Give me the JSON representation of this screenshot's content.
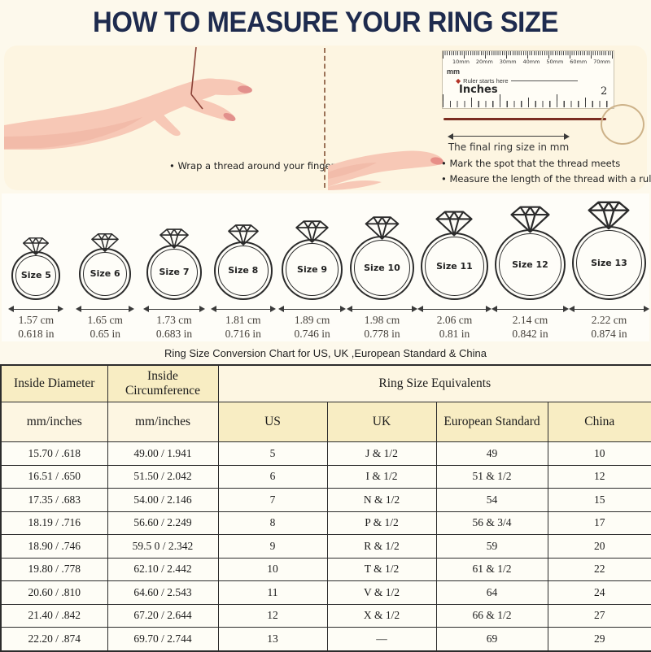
{
  "title": "HOW TO MEASURE YOUR RING SIZE",
  "steps": {
    "wrap": "Wrap a thread around your finger",
    "mark": "Mark the spot that the thread meets",
    "measure": "Measure the length of the thread with a ruler"
  },
  "ruler": {
    "mm_ticks": [
      "10mm",
      "20mm",
      "30mm",
      "40mm",
      "50mm",
      "60mm",
      "70mm"
    ],
    "unit_mm": "mm",
    "starts_here": "Ruler starts here",
    "unit_inches": "Inches",
    "inch_mark": "2",
    "final_size_caption": "The final ring size in mm"
  },
  "rings": [
    {
      "label": "Size 5",
      "cm": "1.57 cm",
      "inch": "0.618 in"
    },
    {
      "label": "Size 6",
      "cm": "1.65 cm",
      "inch": "0.65 in"
    },
    {
      "label": "Size 7",
      "cm": "1.73 cm",
      "inch": "0.683 in"
    },
    {
      "label": "Size 8",
      "cm": "1.81 cm",
      "inch": "0.716 in"
    },
    {
      "label": "Size 9",
      "cm": "1.89 cm",
      "inch": "0.746 in"
    },
    {
      "label": "Size 10",
      "cm": "1.98 cm",
      "inch": "0.778 in"
    },
    {
      "label": "Size 11",
      "cm": "2.06 cm",
      "inch": "0.81 in"
    },
    {
      "label": "Size 12",
      "cm": "2.14 cm",
      "inch": "0.842 in"
    },
    {
      "label": "Size 13",
      "cm": "2.22 cm",
      "inch": "0.874 in"
    }
  ],
  "conversion_chart": {
    "title": "Ring Size Conversion Chart for US, UK ,European Standard & China",
    "header_group": [
      "Inside Diameter",
      "Inside Circumference",
      "Ring Size Equivalents"
    ],
    "columns": [
      "mm/inches",
      "mm/inches",
      "US",
      "UK",
      "European Standard",
      "China"
    ],
    "rows": [
      [
        "15.70 / .618",
        "49.00 / 1.941",
        "5",
        "J & 1/2",
        "49",
        "10"
      ],
      [
        "16.51 / .650",
        "51.50 / 2.042",
        "6",
        "I & 1/2",
        "51 & 1/2",
        "12"
      ],
      [
        "17.35 / .683",
        "54.00 / 2.146",
        "7",
        "N & 1/2",
        "54",
        "15"
      ],
      [
        "18.19 / .716",
        "56.60 / 2.249",
        "8",
        "P & 1/2",
        "56 & 3/4",
        "17"
      ],
      [
        "18.90 / .746",
        "59.5 0 / 2.342",
        "9",
        "R & 1/2",
        "59",
        "20"
      ],
      [
        "19.80 / .778",
        "62.10 / 2.442",
        "10",
        "T & 1/2",
        "61 & 1/2",
        "22"
      ],
      [
        "20.60 / .810",
        "64.60 / 2.543",
        "11",
        "V & 1/2",
        "64",
        "24"
      ],
      [
        "21.40 / .842",
        "67.20 / 2.644",
        "12",
        "X & 1/2",
        "66 & 1/2",
        "27"
      ],
      [
        "22.20 / .874",
        "69.70 / 2.744",
        "13",
        "—",
        "69",
        "29"
      ]
    ]
  },
  "colors": {
    "accent_navy": "#1e2b4e",
    "header_yellow": "#f8edc3",
    "header_cream": "#fdf6e2",
    "thread_red": "#7b2c20",
    "hand_pink": "#f7c8b6"
  }
}
